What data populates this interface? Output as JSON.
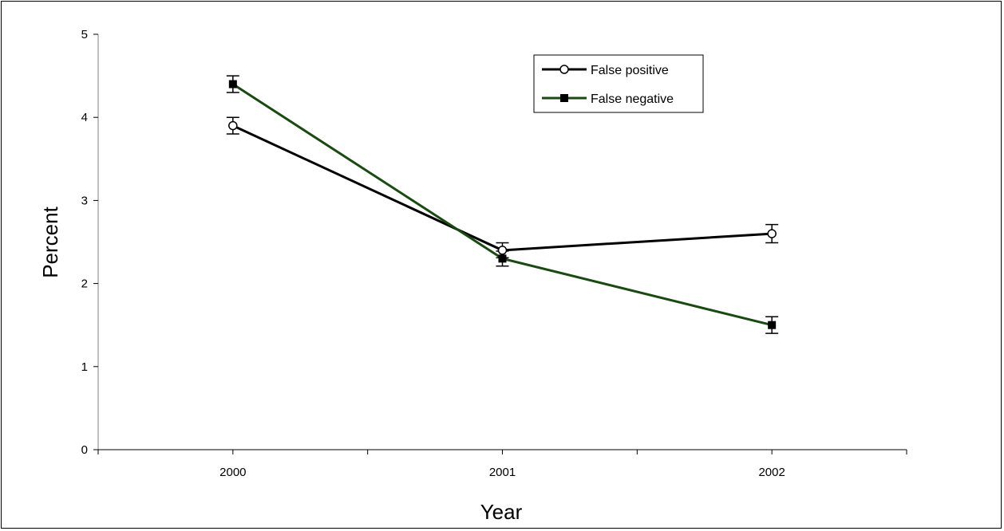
{
  "chart_data": {
    "type": "line",
    "title": "",
    "xlabel": "Year",
    "ylabel": "Percent",
    "categories": [
      "2000",
      "2001",
      "2002"
    ],
    "ylim": [
      0,
      5
    ],
    "yticks": [
      0,
      1,
      2,
      3,
      4,
      5
    ],
    "grid": false,
    "legend_position": "top-right",
    "series": [
      {
        "name": "False positive",
        "values": [
          3.9,
          2.4,
          2.6
        ],
        "error": [
          0.1,
          0.09,
          0.11
        ],
        "color": "#000000",
        "marker": "open-circle"
      },
      {
        "name": "False negative",
        "values": [
          4.4,
          2.3,
          1.5
        ],
        "error": [
          0.1,
          0.09,
          0.1
        ],
        "color": "#1a4a12",
        "marker": "filled-square"
      }
    ]
  }
}
